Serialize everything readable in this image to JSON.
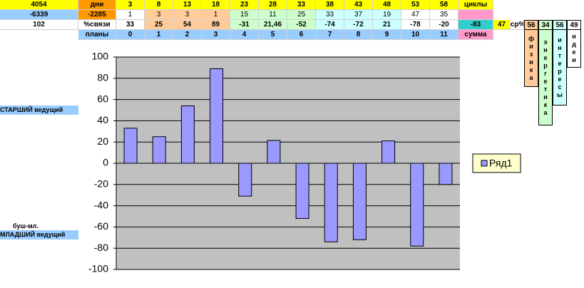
{
  "table": {
    "rows": [
      [
        "4054",
        "дни",
        "3",
        "8",
        "13",
        "18",
        "23",
        "28",
        "33",
        "38",
        "43",
        "48",
        "53",
        "58",
        "циклы"
      ],
      [
        "-6339",
        "-2285",
        "1",
        "3",
        "3",
        "1",
        "15",
        "11",
        "25",
        "33",
        "37",
        "19",
        "47",
        "35"
      ],
      [
        "102",
        "%связи",
        "33",
        "25",
        "54",
        "89",
        "-31",
        "21,46",
        "-52",
        "-74",
        "-72",
        "21",
        "-78",
        "-20",
        "-83",
        "47",
        "ср%"
      ],
      [
        "планы",
        "0",
        "1",
        "2",
        "3",
        "4",
        "5",
        "6",
        "7",
        "8",
        "9",
        "10",
        "11",
        "сумма"
      ]
    ],
    "vertical": [
      {
        "head": "56",
        "word": "физика"
      },
      {
        "head": "34",
        "word": "энергетика"
      },
      {
        "head": "56",
        "word": "интересы"
      },
      {
        "head": "49",
        "word": "идеи"
      }
    ]
  },
  "labels": {
    "senior": "СТАРШИЙ ведущий",
    "bush": "буш-мл.",
    "junior": "МЛАДШИЙ ведущий"
  },
  "chart_data": {
    "type": "bar",
    "series": [
      {
        "name": "Ряд1",
        "color": "#9999ff",
        "values": [
          33,
          25,
          54,
          89,
          -31,
          21.46,
          -52,
          -74,
          -72,
          21,
          -78,
          -20
        ]
      }
    ],
    "ylim": [
      -100,
      100
    ],
    "yticks": [
      -100,
      -80,
      -60,
      -40,
      -20,
      0,
      20,
      40,
      60,
      80,
      100
    ],
    "grid": true,
    "plot_color": "#c0c0c0",
    "legend": "right"
  }
}
